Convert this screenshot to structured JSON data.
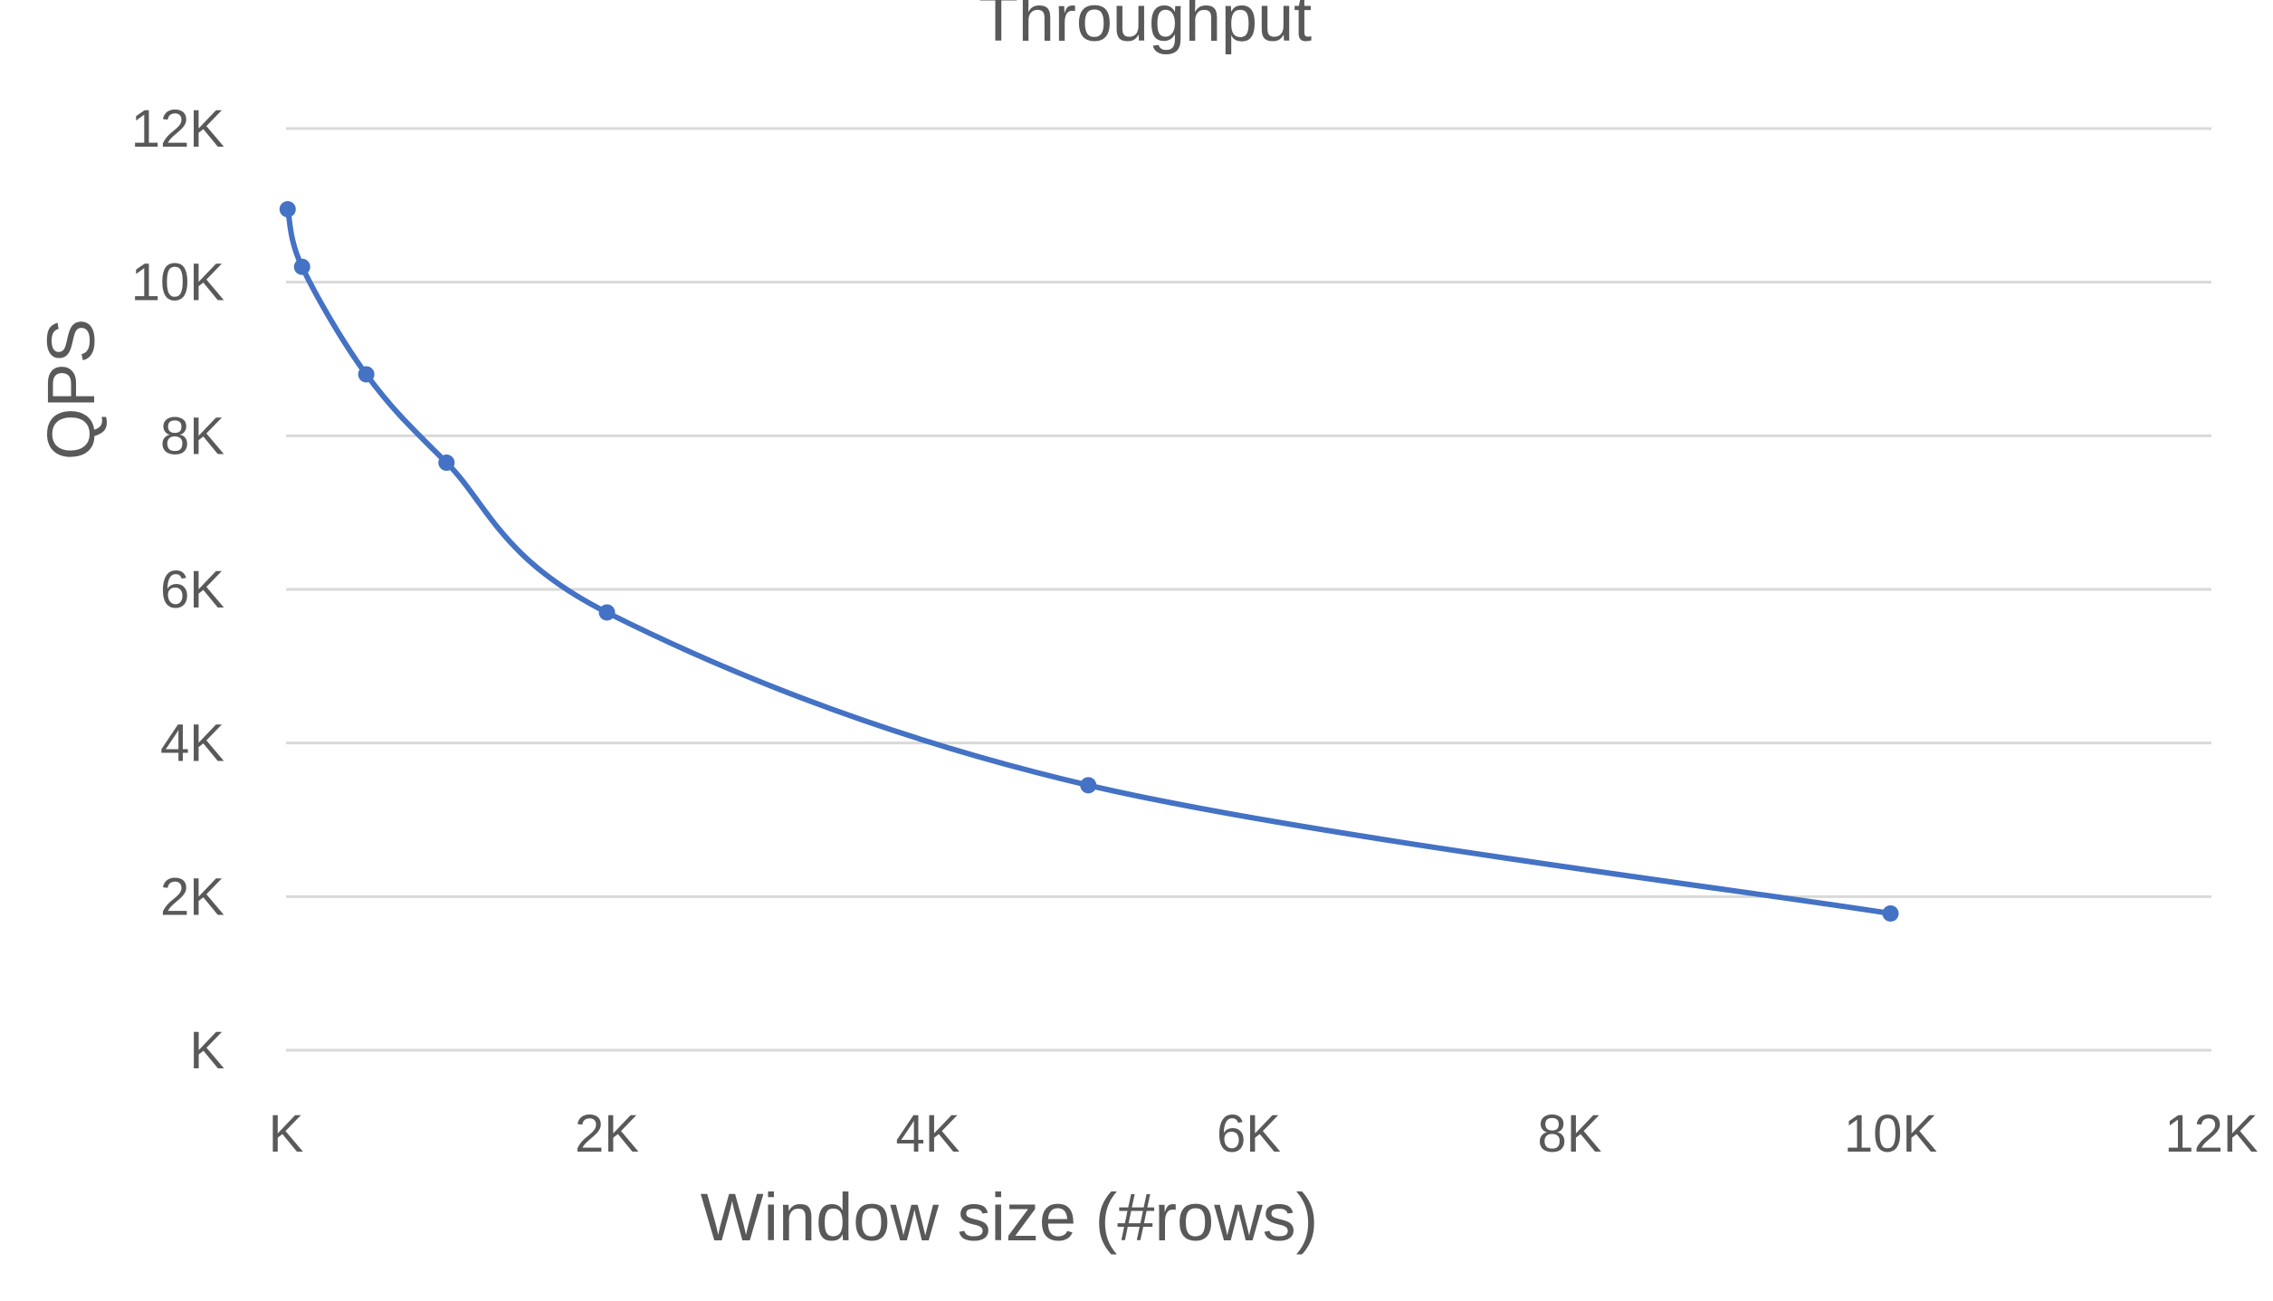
{
  "chart_data": {
    "type": "scatter",
    "title": "Throughput",
    "xlabel": "Window size (#rows)",
    "ylabel": "QPS",
    "xlim": [
      0,
      12000
    ],
    "ylim": [
      0,
      12000
    ],
    "x_ticks": [
      0,
      2000,
      4000,
      6000,
      8000,
      10000,
      12000
    ],
    "x_tick_labels": [
      "K",
      "2K",
      "4K",
      "6K",
      "8K",
      "10K",
      "12K"
    ],
    "y_ticks": [
      0,
      2000,
      4000,
      6000,
      8000,
      10000,
      12000
    ],
    "y_tick_labels": [
      "K",
      "2K",
      "4K",
      "6K",
      "8K",
      "10K",
      "12K"
    ],
    "grid": "horizontal",
    "legend": "none",
    "series": [
      {
        "color": "#4472c4",
        "line": "smooth",
        "markers": true,
        "points": [
          {
            "x": 10,
            "y": 10950
          },
          {
            "x": 100,
            "y": 10200
          },
          {
            "x": 500,
            "y": 8800
          },
          {
            "x": 1000,
            "y": 7650
          },
          {
            "x": 2000,
            "y": 5700
          },
          {
            "x": 5000,
            "y": 3450
          },
          {
            "x": 10000,
            "y": 1780
          }
        ]
      }
    ]
  }
}
